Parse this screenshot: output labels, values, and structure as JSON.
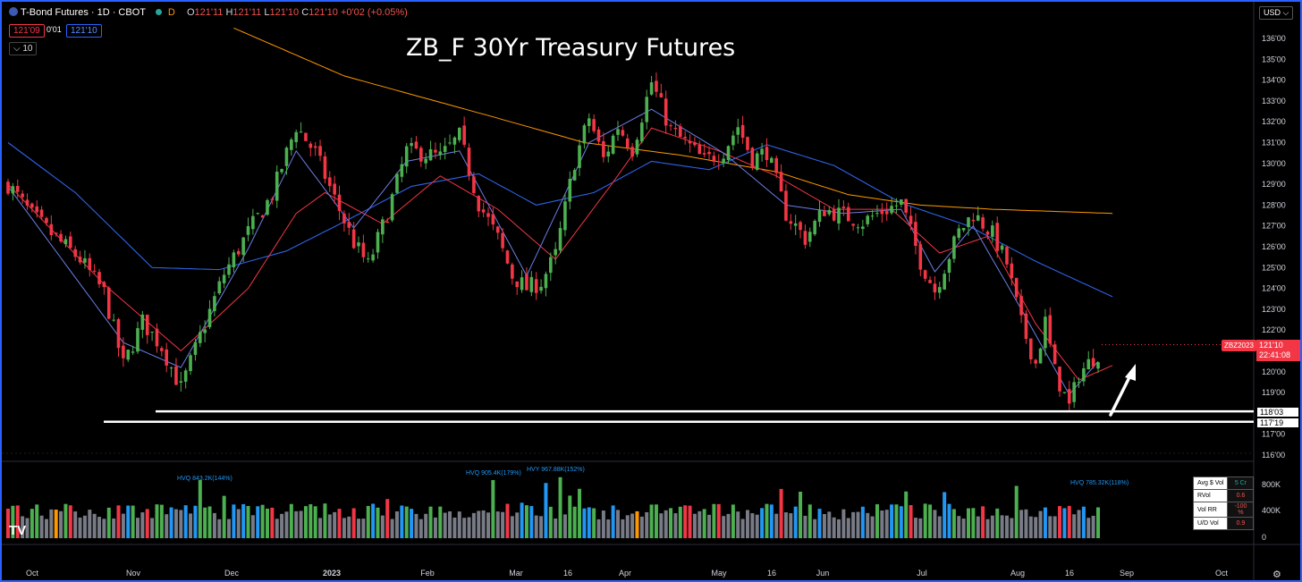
{
  "header": {
    "symbol_title": "T-Bond Futures · 1D · CBOT",
    "interval_badge": "D",
    "ohlc": {
      "o_label": "O",
      "o": "121'11",
      "h_label": "H",
      "h": "121'11",
      "l_label": "L",
      "l": "121'10",
      "c_label": "C",
      "c": "121'10",
      "chg": "+0'02 (+0.05%)"
    },
    "bid": "121'09",
    "spread": "0'01",
    "ask": "121'10",
    "indicator_count": "10",
    "currency": "USD"
  },
  "overlay_title": "ZB_F 30Yr Treasury Futures",
  "price_tag": {
    "symbol": "ZBZ2023",
    "price": "121'10",
    "countdown": "22:41:08"
  },
  "levels": [
    "118'03",
    "117'19"
  ],
  "colors": {
    "up": "#4caf50",
    "down": "#f23645",
    "ema_fast": "#6d7ee6",
    "ema_mid": "#f23645",
    "ema_slow": "#2f62e6",
    "sma_long": "#ff9800",
    "panel": "#2962ff"
  },
  "volume_panel": {
    "annotations": [
      "HVQ 843.2K(144%)",
      "HVQ 905.4K(179%)",
      "HVY 967.88K(152%)",
      "HVQ 785.32K(118%)"
    ],
    "table": [
      {
        "k": "Avg $ Vol",
        "v": "5 Cr"
      },
      {
        "k": "RVol",
        "v": "0.6"
      },
      {
        "k": "Vol RR",
        "v": "-100 %"
      },
      {
        "k": "U/D Vol",
        "v": "0.9"
      }
    ]
  },
  "chart_data": {
    "type": "candlestick",
    "title": "ZB_F 30Yr Treasury Futures",
    "xlabel": "",
    "ylabel": "",
    "x_ticks": [
      "Oct",
      "Nov",
      "Dec",
      "2023",
      "Feb",
      "Mar",
      "16",
      "Apr",
      "May",
      "16",
      "Jun",
      "Jul",
      "Aug",
      "16",
      "Sep",
      "Oct"
    ],
    "y_ticks": [
      "136'00",
      "135'00",
      "134'00",
      "133'00",
      "132'00",
      "131'00",
      "130'00",
      "129'00",
      "128'00",
      "127'00",
      "126'00",
      "125'00",
      "124'00",
      "123'00",
      "122'00",
      "121'00",
      "120'00",
      "119'00",
      "118'00",
      "117'00",
      "116'00"
    ],
    "ylim": [
      116,
      136.5
    ],
    "price_path": [
      [
        0,
        129.0
      ],
      [
        5,
        127.5
      ],
      [
        10,
        126.4
      ],
      [
        15,
        125.4
      ],
      [
        20,
        123.8
      ],
      [
        24,
        120.3
      ],
      [
        28,
        122.4
      ],
      [
        32,
        121.2
      ],
      [
        36,
        119.2
      ],
      [
        40,
        121.7
      ],
      [
        45,
        124.7
      ],
      [
        50,
        126.7
      ],
      [
        55,
        128.5
      ],
      [
        60,
        131.8
      ],
      [
        64,
        130.5
      ],
      [
        68,
        128.3
      ],
      [
        72,
        126.2
      ],
      [
        75,
        125.1
      ],
      [
        79,
        127.6
      ],
      [
        83,
        130.6
      ],
      [
        86,
        130.5
      ],
      [
        90,
        130.3
      ],
      [
        94,
        131.3
      ],
      [
        98,
        128.1
      ],
      [
        102,
        126.4
      ],
      [
        105,
        124.6
      ],
      [
        108,
        124.0
      ],
      [
        111,
        124.3
      ],
      [
        114,
        125.6
      ],
      [
        118,
        130.1
      ],
      [
        121,
        132.2
      ],
      [
        124,
        130.2
      ],
      [
        127,
        131.8
      ],
      [
        130,
        130.7
      ],
      [
        134,
        133.9
      ],
      [
        138,
        131.6
      ],
      [
        142,
        130.8
      ],
      [
        145,
        130.1
      ],
      [
        149,
        130.6
      ],
      [
        152,
        131.8
      ],
      [
        155,
        130.2
      ],
      [
        158,
        130.6
      ],
      [
        162,
        127.6
      ],
      [
        166,
        126.4
      ],
      [
        170,
        127.8
      ],
      [
        174,
        127.5
      ],
      [
        178,
        127.2
      ],
      [
        182,
        127.7
      ],
      [
        186,
        128.1
      ],
      [
        190,
        125.3
      ],
      [
        193,
        123.9
      ],
      [
        196,
        125.6
      ],
      [
        198,
        126.7
      ],
      [
        201,
        127.6
      ],
      [
        205,
        126.6
      ],
      [
        208,
        125.2
      ],
      [
        211,
        122.3
      ],
      [
        214,
        120.4
      ],
      [
        216,
        122.4
      ],
      [
        218,
        120.0
      ],
      [
        221,
        118.3
      ],
      [
        223,
        119.9
      ],
      [
        227,
        120.9
      ]
    ],
    "ema_fast": [
      [
        0,
        128.9
      ],
      [
        24,
        121.4
      ],
      [
        36,
        120.2
      ],
      [
        50,
        125.9
      ],
      [
        60,
        130.6
      ],
      [
        72,
        126.9
      ],
      [
        83,
        130.1
      ],
      [
        94,
        130.6
      ],
      [
        108,
        124.6
      ],
      [
        121,
        131.0
      ],
      [
        134,
        132.6
      ],
      [
        149,
        130.5
      ],
      [
        162,
        128.0
      ],
      [
        174,
        127.6
      ],
      [
        186,
        127.8
      ],
      [
        193,
        124.8
      ],
      [
        201,
        127.0
      ],
      [
        211,
        123.0
      ],
      [
        221,
        118.9
      ],
      [
        227,
        120.5
      ]
    ],
    "ema_mid": [
      [
        0,
        129.0
      ],
      [
        20,
        124.2
      ],
      [
        36,
        121.0
      ],
      [
        50,
        124.0
      ],
      [
        60,
        127.6
      ],
      [
        66,
        128.6
      ],
      [
        78,
        127.1
      ],
      [
        90,
        129.4
      ],
      [
        102,
        127.8
      ],
      [
        114,
        125.4
      ],
      [
        126,
        129.1
      ],
      [
        134,
        131.7
      ],
      [
        148,
        130.6
      ],
      [
        160,
        129.4
      ],
      [
        172,
        127.8
      ],
      [
        184,
        127.8
      ],
      [
        194,
        125.7
      ],
      [
        204,
        126.5
      ],
      [
        214,
        122.3
      ],
      [
        223,
        119.6
      ],
      [
        230,
        120.3
      ]
    ],
    "ema_slow": [
      [
        0,
        131.0
      ],
      [
        14,
        128.6
      ],
      [
        30,
        125.0
      ],
      [
        44,
        124.9
      ],
      [
        58,
        125.8
      ],
      [
        70,
        127.2
      ],
      [
        84,
        128.9
      ],
      [
        98,
        129.5
      ],
      [
        110,
        128.0
      ],
      [
        122,
        128.6
      ],
      [
        134,
        130.1
      ],
      [
        146,
        129.7
      ],
      [
        158,
        130.9
      ],
      [
        172,
        129.9
      ],
      [
        186,
        128.1
      ],
      [
        200,
        127.0
      ],
      [
        214,
        125.3
      ],
      [
        230,
        123.6
      ]
    ],
    "sma_long": [
      [
        47,
        136.5
      ],
      [
        70,
        134.2
      ],
      [
        100,
        132.3
      ],
      [
        120,
        131.0
      ],
      [
        140,
        130.4
      ],
      [
        160,
        129.6
      ],
      [
        175,
        128.5
      ],
      [
        190,
        128.0
      ],
      [
        205,
        127.8
      ],
      [
        230,
        127.6
      ]
    ],
    "levels": [
      118.1,
      117.6
    ]
  }
}
